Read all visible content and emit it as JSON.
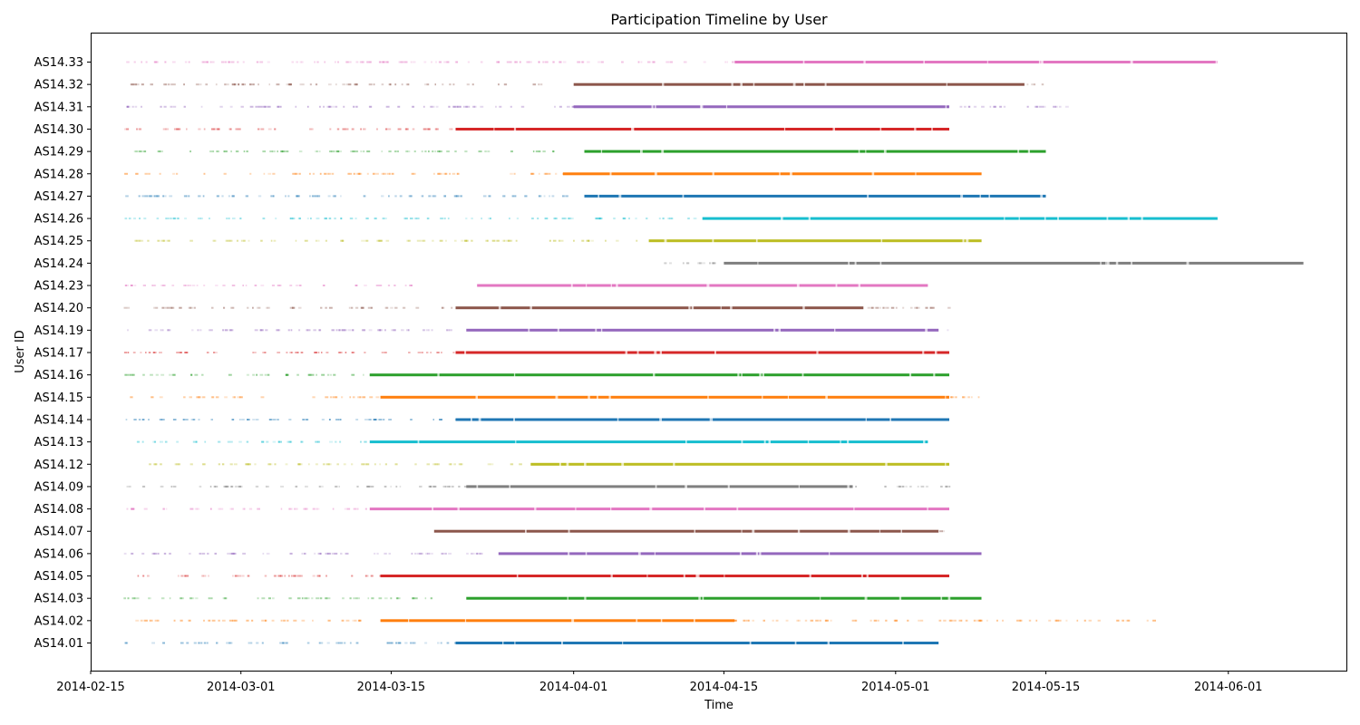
{
  "chart_data": {
    "type": "scatter",
    "title": "Participation Timeline by User",
    "xlabel": "Time",
    "ylabel": "User ID",
    "x_axis_type": "date",
    "xlim": [
      "2014-02-15",
      "2014-06-12"
    ],
    "x_ticks": [
      "2014-02-15",
      "2014-03-01",
      "2014-03-15",
      "2014-04-01",
      "2014-04-15",
      "2014-05-01",
      "2014-05-15",
      "2014-06-01"
    ],
    "grid": false,
    "legend": "none",
    "colors": [
      "#1f77b4",
      "#ff7f0e",
      "#2ca02c",
      "#d62728",
      "#9467bd",
      "#8c564b",
      "#e377c2",
      "#7f7f7f",
      "#bcbd22",
      "#17becf"
    ],
    "series": [
      {
        "user": "AS14.01",
        "sparse": [
          "2014-02-18",
          "2014-03-21"
        ],
        "dense": [
          "2014-03-21",
          "2014-05-05"
        ]
      },
      {
        "user": "AS14.02",
        "sparse": [
          "2014-02-18",
          "2014-05-26"
        ],
        "dense": [
          "2014-03-14",
          "2014-04-16"
        ]
      },
      {
        "user": "AS14.03",
        "sparse": [
          "2014-02-18",
          "2014-03-22"
        ],
        "dense": [
          "2014-03-22",
          "2014-05-09"
        ]
      },
      {
        "user": "AS14.05",
        "sparse": [
          "2014-02-19",
          "2014-03-14"
        ],
        "dense": [
          "2014-03-14",
          "2014-05-06"
        ]
      },
      {
        "user": "AS14.06",
        "sparse": [
          "2014-02-18",
          "2014-03-25"
        ],
        "dense": [
          "2014-03-25",
          "2014-05-09"
        ]
      },
      {
        "user": "AS14.07",
        "sparse": [
          "2014-05-05",
          "2014-05-06"
        ],
        "dense": [
          "2014-03-19",
          "2014-05-05"
        ]
      },
      {
        "user": "AS14.08",
        "sparse": [
          "2014-02-18",
          "2014-03-13"
        ],
        "dense": [
          "2014-03-13",
          "2014-05-06"
        ]
      },
      {
        "user": "AS14.09",
        "sparse": [
          "2014-02-18",
          "2014-05-06"
        ],
        "dense": [
          "2014-03-22",
          "2014-04-27"
        ]
      },
      {
        "user": "AS14.12",
        "sparse": [
          "2014-02-20",
          "2014-03-27"
        ],
        "dense": [
          "2014-03-28",
          "2014-05-06"
        ]
      },
      {
        "user": "AS14.13",
        "sparse": [
          "2014-02-19",
          "2014-03-13"
        ],
        "dense": [
          "2014-03-13",
          "2014-05-04"
        ]
      },
      {
        "user": "AS14.14",
        "sparse": [
          "2014-02-18",
          "2014-03-21"
        ],
        "dense": [
          "2014-03-21",
          "2014-05-06"
        ]
      },
      {
        "user": "AS14.15",
        "sparse": [
          "2014-02-18",
          "2014-05-09"
        ],
        "dense": [
          "2014-03-14",
          "2014-05-06"
        ]
      },
      {
        "user": "AS14.16",
        "sparse": [
          "2014-02-18",
          "2014-03-13"
        ],
        "dense": [
          "2014-03-13",
          "2014-05-06"
        ]
      },
      {
        "user": "AS14.17",
        "sparse": [
          "2014-02-18",
          "2014-03-21"
        ],
        "dense": [
          "2014-03-21",
          "2014-05-06"
        ]
      },
      {
        "user": "AS14.19",
        "sparse": [
          "2014-02-18",
          "2014-05-06"
        ],
        "dense": [
          "2014-03-22",
          "2014-05-05"
        ]
      },
      {
        "user": "AS14.20",
        "sparse": [
          "2014-02-18",
          "2014-05-06"
        ],
        "dense": [
          "2014-03-21",
          "2014-04-28"
        ]
      },
      {
        "user": "AS14.23",
        "sparse": [
          "2014-02-18",
          "2014-03-17"
        ],
        "dense": [
          "2014-03-23",
          "2014-05-04"
        ]
      },
      {
        "user": "AS14.24",
        "sparse": [
          "2014-04-09",
          "2014-04-15"
        ],
        "dense": [
          "2014-04-15",
          "2014-06-08"
        ]
      },
      {
        "user": "AS14.25",
        "sparse": [
          "2014-02-18",
          "2014-04-08"
        ],
        "dense": [
          "2014-04-08",
          "2014-05-09"
        ]
      },
      {
        "user": "AS14.26",
        "sparse": [
          "2014-02-18",
          "2014-04-13"
        ],
        "dense": [
          "2014-04-13",
          "2014-05-31"
        ]
      },
      {
        "user": "AS14.27",
        "sparse": [
          "2014-02-18",
          "2014-04-02"
        ],
        "dense": [
          "2014-04-02",
          "2014-05-15"
        ]
      },
      {
        "user": "AS14.28",
        "sparse": [
          "2014-02-18",
          "2014-03-31"
        ],
        "dense": [
          "2014-03-31",
          "2014-05-09"
        ]
      },
      {
        "user": "AS14.29",
        "sparse": [
          "2014-02-18",
          "2014-04-02"
        ],
        "dense": [
          "2014-04-02",
          "2014-05-15"
        ]
      },
      {
        "user": "AS14.30",
        "sparse": [
          "2014-02-18",
          "2014-03-21"
        ],
        "dense": [
          "2014-03-21",
          "2014-05-06"
        ]
      },
      {
        "user": "AS14.31",
        "sparse": [
          "2014-02-18",
          "2014-05-17"
        ],
        "dense": [
          "2014-04-01",
          "2014-05-06"
        ]
      },
      {
        "user": "AS14.32",
        "sparse": [
          "2014-02-18",
          "2014-05-15"
        ],
        "dense": [
          "2014-04-01",
          "2014-05-13"
        ]
      },
      {
        "user": "AS14.33",
        "sparse": [
          "2014-02-18",
          "2014-06-01"
        ],
        "dense": [
          "2014-04-16",
          "2014-05-31"
        ]
      }
    ]
  }
}
